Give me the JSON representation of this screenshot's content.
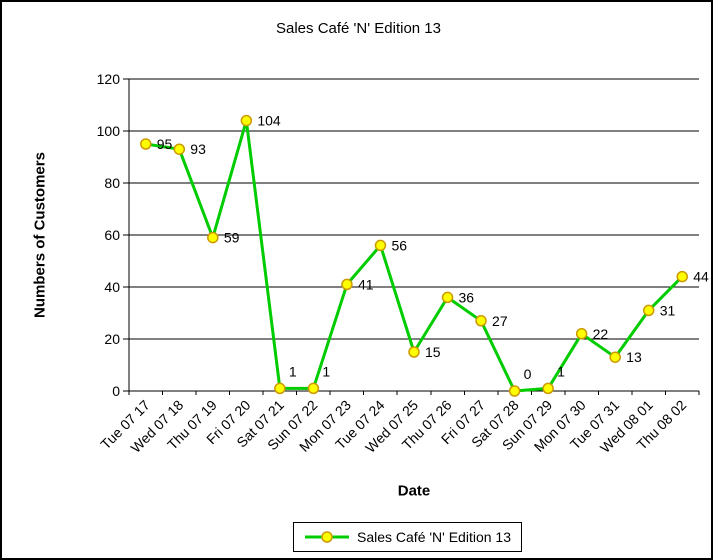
{
  "chart_data": {
    "type": "line",
    "title": "Sales Café 'N' Edition 13",
    "xlabel": "Date",
    "ylabel": "Numbers of Customers",
    "ylim": [
      0,
      120
    ],
    "yticks": [
      0,
      20,
      40,
      60,
      80,
      100,
      120
    ],
    "categories": [
      "Tue 07 17",
      "Wed 07 18",
      "Thu 07 19",
      "Fri 07 20",
      "Sat 07 21",
      "Sun 07 22",
      "Mon 07 23",
      "Tue 07 24",
      "Wed 07 25",
      "Thu 07 26",
      "Fri 07 27",
      "Sat 07 28",
      "Sun 07 29",
      "Mon 07 30",
      "Tue 07 31",
      "Wed 08 01",
      "Thu 08 02"
    ],
    "series": [
      {
        "name": "Sales Café 'N' Edition 13",
        "values": [
          95,
          93,
          59,
          104,
          1,
          1,
          41,
          56,
          15,
          36,
          27,
          0,
          1,
          22,
          13,
          31,
          44
        ],
        "line_color": "#00CC00",
        "marker_fill": "#FFFF00",
        "marker_border": "#CC9900"
      }
    ],
    "grid": true,
    "gridline_color": "#000000",
    "axis_color": "#000000",
    "data_labels": true,
    "legend": {
      "position": "bottom",
      "label": "Sales Café 'N' Edition 13"
    },
    "background": "#FFFFFF",
    "frame_border": "#000000"
  }
}
